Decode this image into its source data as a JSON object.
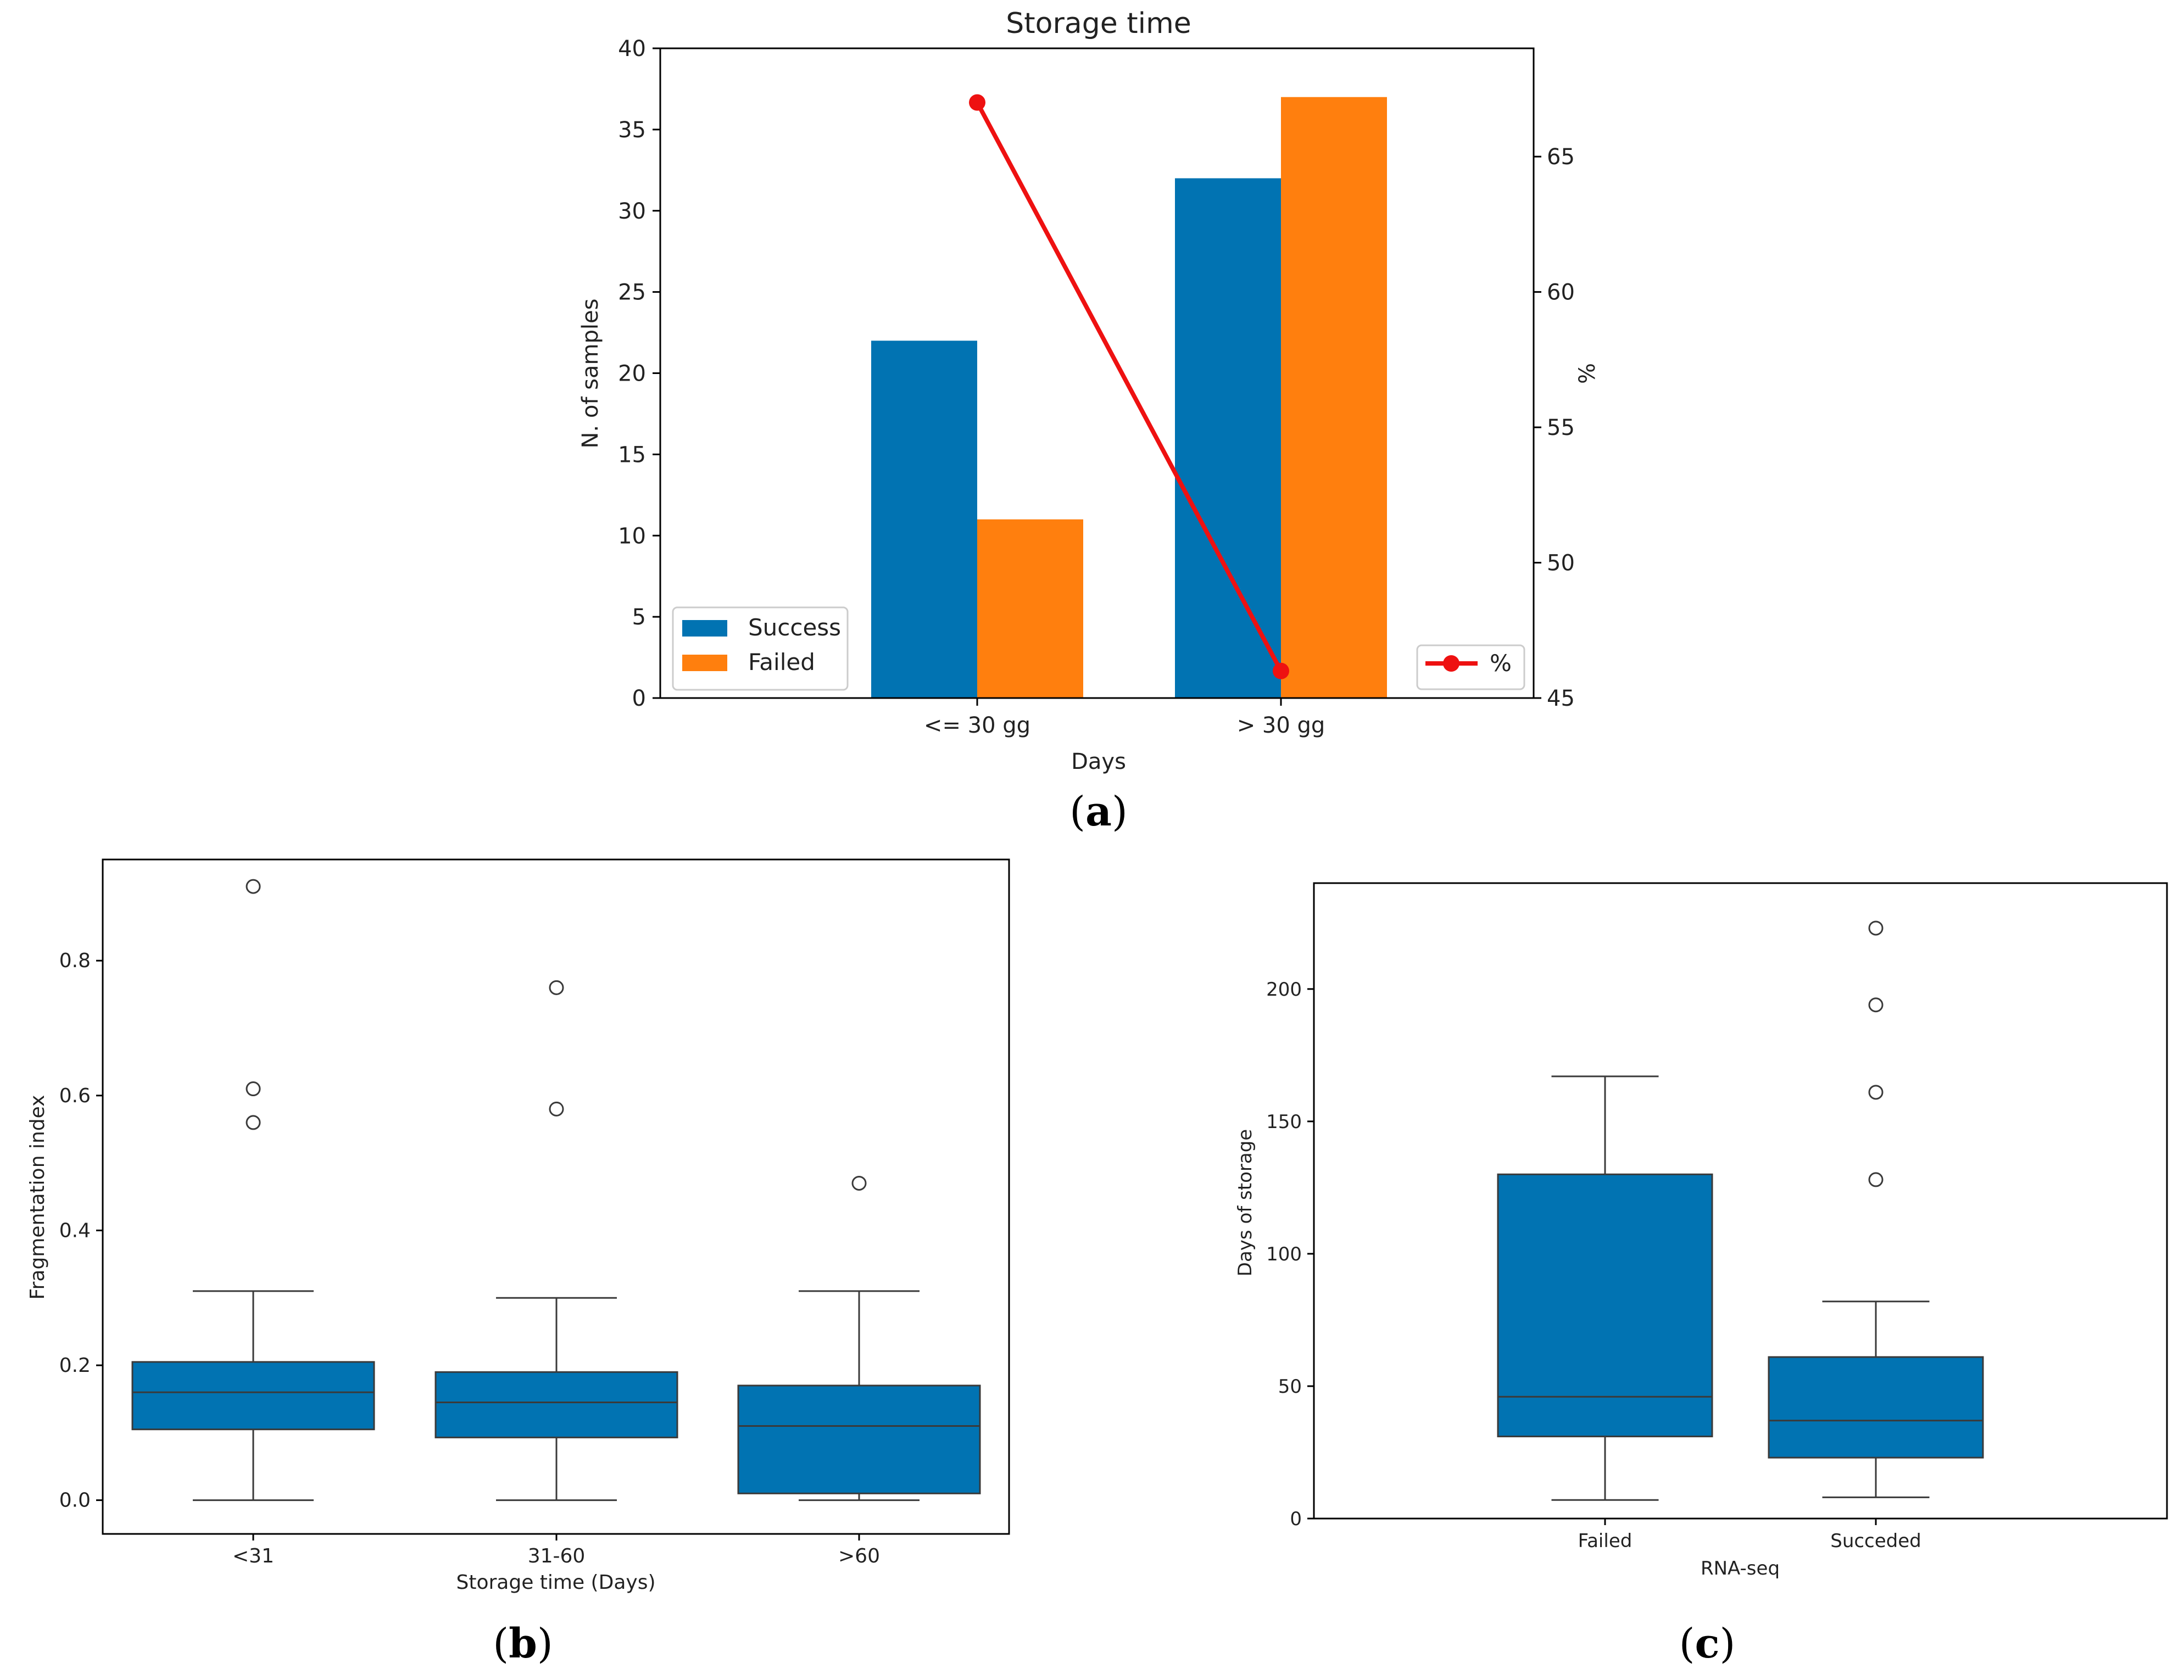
{
  "chart_data": [
    {
      "id": "a",
      "type": "bar",
      "panel_label": "a",
      "title": "Storage time",
      "xlabel": "Days",
      "ylabel": "N. of samples",
      "y2label": "%",
      "categories": [
        "<= 30 gg",
        "> 30 gg"
      ],
      "series": [
        {
          "name": "Success",
          "values": [
            22,
            32
          ],
          "color": "#0173b2"
        },
        {
          "name": "Failed",
          "values": [
            11,
            37
          ],
          "color": "#ff7f0e"
        }
      ],
      "line": {
        "name": "%",
        "values": [
          67,
          46
        ],
        "color": "#ee1111"
      },
      "ylim": [
        0,
        40
      ],
      "y2lim": [
        45,
        69
      ],
      "yticks": [
        0,
        5,
        10,
        15,
        20,
        25,
        30,
        35,
        40
      ],
      "y2ticks": [
        45,
        50,
        55,
        60,
        65
      ],
      "legend_placement": "lower-left",
      "legend2_placement": "lower-right"
    },
    {
      "id": "b",
      "type": "box",
      "panel_label": "b",
      "xlabel": "Storage time (Days)",
      "ylabel": "Fragmentation index",
      "categories": [
        "<31",
        "31-60",
        ">60"
      ],
      "boxes": [
        {
          "whisker_low": 0.0,
          "q1": 0.105,
          "median": 0.16,
          "q3": 0.205,
          "whisker_high": 0.31,
          "outliers": [
            0.56,
            0.61,
            0.91
          ]
        },
        {
          "whisker_low": 0.0,
          "q1": 0.093,
          "median": 0.145,
          "q3": 0.19,
          "whisker_high": 0.3,
          "outliers": [
            0.58,
            0.76
          ]
        },
        {
          "whisker_low": 0.0,
          "q1": 0.01,
          "median": 0.11,
          "q3": 0.17,
          "whisker_high": 0.31,
          "outliers": [
            0.47
          ]
        }
      ],
      "ylim": [
        -0.05,
        0.95
      ],
      "yticks": [
        "0.0",
        "0.2",
        "0.4",
        "0.6",
        "0.8"
      ],
      "color": "#0173b2"
    },
    {
      "id": "c",
      "type": "box",
      "panel_label": "c",
      "xlabel": "RNA-seq",
      "ylabel": "Days of storage",
      "categories": [
        "Failed",
        "Succeded"
      ],
      "boxes": [
        {
          "whisker_low": 7,
          "q1": 31,
          "median": 46,
          "q3": 130,
          "whisker_high": 167,
          "outliers": []
        },
        {
          "whisker_low": 8,
          "q1": 23,
          "median": 37,
          "q3": 61,
          "whisker_high": 82,
          "outliers": [
            128,
            161,
            194,
            223
          ]
        }
      ],
      "ylim": [
        0,
        240
      ],
      "yticks": [
        "0",
        "50",
        "100",
        "150",
        "200"
      ],
      "color": "#0173b2"
    }
  ]
}
